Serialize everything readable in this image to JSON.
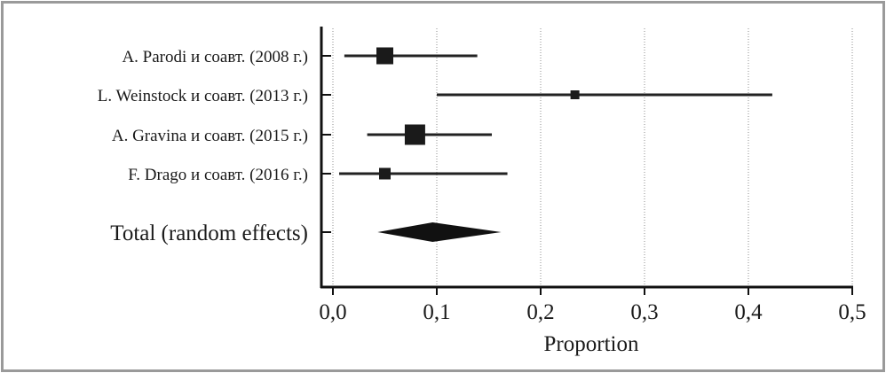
{
  "chart_data": {
    "type": "forest",
    "xlabel": "Proportion",
    "xlim": [
      0.0,
      0.5
    ],
    "ticks": [
      0.0,
      0.1,
      0.2,
      0.3,
      0.4,
      0.5
    ],
    "tick_labels": [
      "0,0",
      "0,1",
      "0,2",
      "0,3",
      "0,4",
      "0,5"
    ],
    "grid": "vertical-dotted",
    "studies": [
      {
        "label": "A. Parodi и соавт. (2008 г.)",
        "estimate": 0.05,
        "ci_low": 0.011,
        "ci_high": 0.139,
        "weight": "large"
      },
      {
        "label": "L. Weinstock и соавт. (2013 г.)",
        "estimate": 0.233,
        "ci_low": 0.1,
        "ci_high": 0.423,
        "weight": "small"
      },
      {
        "label": "A. Gravina и соавт. (2015 г.)",
        "estimate": 0.079,
        "ci_low": 0.033,
        "ci_high": 0.153,
        "weight": "largest"
      },
      {
        "label": "F. Drago и соавт. (2016 г.)",
        "estimate": 0.05,
        "ci_low": 0.006,
        "ci_high": 0.168,
        "weight": "medium"
      }
    ],
    "pooled": {
      "label": "Total (random effects)",
      "estimate": 0.096,
      "ci_low": 0.043,
      "ci_high": 0.162
    }
  }
}
